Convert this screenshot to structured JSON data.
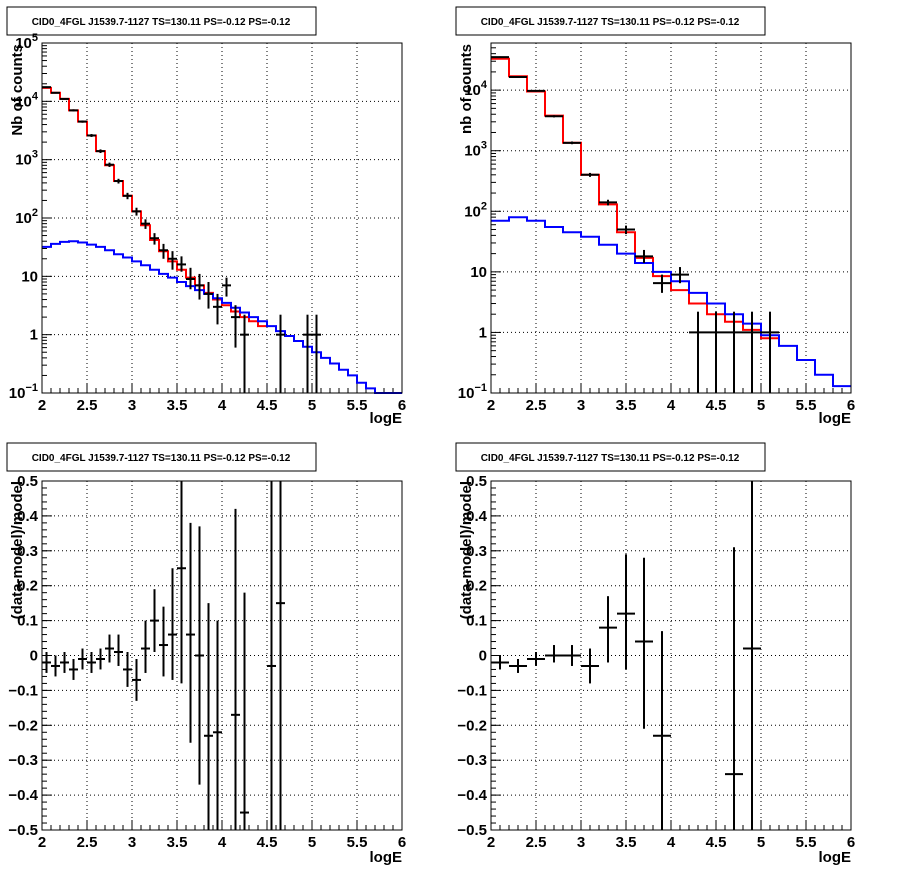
{
  "chart_data": [
    {
      "type": "histogram",
      "title": "CID0_4FGL J1539.7-1127 TS=130.11 PS=-0.12 PS=-0.12",
      "xlabel": "logE",
      "ylabel": "Nb of counts",
      "xlim": [
        2,
        6
      ],
      "ylim": [
        0.1,
        100000
      ],
      "yscale": "log",
      "grid": true,
      "x_ticks": [
        "2",
        "2.5",
        "3",
        "3.5",
        "4",
        "4.5",
        "5",
        "5.5",
        "6"
      ],
      "y_ticks": [
        {
          "v": 0.1,
          "base": "10",
          "exp": "−1"
        },
        {
          "v": 1,
          "label": "1"
        },
        {
          "v": 10,
          "label": "10"
        },
        {
          "v": 100,
          "base": "10",
          "exp": "2"
        },
        {
          "v": 1000,
          "base": "10",
          "exp": "3"
        },
        {
          "v": 10000,
          "base": "10",
          "exp": "4"
        },
        {
          "v": 100000,
          "base": "10",
          "exp": "5"
        }
      ],
      "series": [
        {
          "color": "#ff0000",
          "style": "step",
          "x_edges": [
            2,
            2.1,
            2.2,
            2.3,
            2.4,
            2.5,
            2.6,
            2.7,
            2.8,
            2.9,
            3,
            3.1,
            3.2,
            3.3,
            3.4,
            3.5,
            3.6,
            3.7,
            3.8,
            3.9,
            4,
            4.1,
            4.2,
            4.3,
            4.4,
            4.5
          ],
          "values": [
            17000,
            14000,
            11000,
            7000,
            4500,
            2600,
            1400,
            800,
            430,
            240,
            130,
            75,
            42,
            27,
            18,
            13,
            9.5,
            7,
            5.2,
            4,
            3.2,
            2.5,
            2.0,
            1.7,
            1.4
          ]
        },
        {
          "color": "#0000ff",
          "style": "step",
          "x_edges": [
            2,
            2.1,
            2.2,
            2.3,
            2.4,
            2.5,
            2.6,
            2.7,
            2.8,
            2.9,
            3,
            3.1,
            3.2,
            3.3,
            3.4,
            3.5,
            3.6,
            3.7,
            3.8,
            3.9,
            4,
            4.1,
            4.2,
            4.3,
            4.4,
            4.5,
            4.6,
            4.7,
            4.8,
            4.9,
            5,
            5.1,
            5.2,
            5.3,
            5.4,
            5.5,
            5.6,
            5.7,
            5.8,
            5.9,
            6
          ],
          "values": [
            32,
            36,
            39,
            40,
            38,
            35,
            32,
            28,
            24,
            21,
            18,
            15.5,
            13,
            11,
            9.5,
            8,
            6.8,
            5.8,
            5,
            4.2,
            3.5,
            2.9,
            2.4,
            2.0,
            1.7,
            1.4,
            1.15,
            0.95,
            0.78,
            0.62,
            0.5,
            0.4,
            0.32,
            0.25,
            0.2,
            0.15,
            0.12,
            0.1,
            0.1,
            0.1
          ]
        },
        {
          "color": "#000000",
          "style": "errorbar",
          "xerr": 0.05,
          "points": [
            {
              "x": 2.05,
              "y": 17500,
              "lo": 17000,
              "hi": 18000
            },
            {
              "x": 2.15,
              "y": 14000,
              "lo": 13600,
              "hi": 14400
            },
            {
              "x": 2.25,
              "y": 11000,
              "lo": 10600,
              "hi": 11400
            },
            {
              "x": 2.35,
              "y": 7000,
              "lo": 6700,
              "hi": 7300
            },
            {
              "x": 2.45,
              "y": 4500,
              "lo": 4300,
              "hi": 4700
            },
            {
              "x": 2.55,
              "y": 2600,
              "lo": 2450,
              "hi": 2750
            },
            {
              "x": 2.65,
              "y": 1400,
              "lo": 1300,
              "hi": 1500
            },
            {
              "x": 2.75,
              "y": 820,
              "lo": 750,
              "hi": 890
            },
            {
              "x": 2.85,
              "y": 430,
              "lo": 390,
              "hi": 470
            },
            {
              "x": 2.95,
              "y": 240,
              "lo": 210,
              "hi": 270
            },
            {
              "x": 3.05,
              "y": 130,
              "lo": 110,
              "hi": 150
            },
            {
              "x": 3.15,
              "y": 80,
              "lo": 65,
              "hi": 95
            },
            {
              "x": 3.25,
              "y": 45,
              "lo": 35,
              "hi": 55
            },
            {
              "x": 3.35,
              "y": 28,
              "lo": 20,
              "hi": 36
            },
            {
              "x": 3.45,
              "y": 20,
              "lo": 13,
              "hi": 27
            },
            {
              "x": 3.55,
              "y": 16,
              "lo": 12,
              "hi": 22
            },
            {
              "x": 3.65,
              "y": 9,
              "lo": 6,
              "hi": 14
            },
            {
              "x": 3.75,
              "y": 7,
              "lo": 4,
              "hi": 11
            },
            {
              "x": 3.85,
              "y": 5,
              "lo": 2.8,
              "hi": 8
            },
            {
              "x": 3.95,
              "y": 3,
              "lo": 1.5,
              "hi": 5
            },
            {
              "x": 4.05,
              "y": 7,
              "lo": 4.5,
              "hi": 9.5
            },
            {
              "x": 4.15,
              "y": 2,
              "lo": 0.6,
              "hi": 3.2
            },
            {
              "x": 4.25,
              "y": 1,
              "lo": 0.1,
              "hi": 2.2
            },
            {
              "x": 4.65,
              "y": 1,
              "lo": 0.1,
              "hi": 2.2
            },
            {
              "x": 4.95,
              "y": 1,
              "lo": 0.1,
              "hi": 2.2
            },
            {
              "x": 5.05,
              "y": 1,
              "lo": 0.1,
              "hi": 2.2
            }
          ]
        }
      ]
    },
    {
      "type": "histogram",
      "title": "CID0_4FGL J1539.7-1127 TS=130.11 PS=-0.12 PS=-0.12",
      "xlabel": "logE",
      "ylabel": "nb of counts",
      "xlim": [
        2,
        6
      ],
      "ylim": [
        0.1,
        60000
      ],
      "yscale": "log",
      "grid": true,
      "x_ticks": [
        "2",
        "2.5",
        "3",
        "3.5",
        "4",
        "4.5",
        "5",
        "5.5",
        "6"
      ],
      "y_ticks": [
        {
          "v": 0.1,
          "base": "10",
          "exp": "−1"
        },
        {
          "v": 1,
          "label": "1"
        },
        {
          "v": 10,
          "label": "10"
        },
        {
          "v": 100,
          "base": "10",
          "exp": "2"
        },
        {
          "v": 1000,
          "base": "10",
          "exp": "3"
        },
        {
          "v": 10000,
          "base": "10",
          "exp": "4"
        }
      ],
      "series": [
        {
          "color": "#ff0000",
          "style": "step",
          "x_edges": [
            2,
            2.2,
            2.4,
            2.6,
            2.8,
            3,
            3.2,
            3.4,
            3.6,
            3.8,
            4,
            4.2,
            4.4,
            4.6,
            4.8,
            5,
            5.2
          ],
          "values": [
            33000,
            17000,
            9500,
            3800,
            1350,
            400,
            130,
            45,
            17,
            8.5,
            5,
            3,
            2,
            1.5,
            1.1,
            0.8
          ]
        },
        {
          "color": "#0000ff",
          "style": "step",
          "x_edges": [
            2,
            2.2,
            2.4,
            2.6,
            2.8,
            3,
            3.2,
            3.4,
            3.6,
            3.8,
            4,
            4.2,
            4.4,
            4.6,
            4.8,
            5,
            5.2,
            5.4,
            5.6,
            5.8,
            6
          ],
          "values": [
            70,
            80,
            70,
            55,
            45,
            38,
            28,
            20,
            14,
            10,
            7,
            4.5,
            3,
            2,
            1.4,
            0.9,
            0.6,
            0.35,
            0.2,
            0.13
          ]
        },
        {
          "color": "#000000",
          "style": "errorbar",
          "xerr": 0.1,
          "points": [
            {
              "x": 2.1,
              "y": 35000,
              "lo": 34000,
              "hi": 36000
            },
            {
              "x": 2.3,
              "y": 16500,
              "lo": 16000,
              "hi": 17000
            },
            {
              "x": 2.5,
              "y": 9700,
              "lo": 9400,
              "hi": 10000
            },
            {
              "x": 2.7,
              "y": 3700,
              "lo": 3550,
              "hi": 3850
            },
            {
              "x": 2.9,
              "y": 1350,
              "lo": 1280,
              "hi": 1420
            },
            {
              "x": 3.1,
              "y": 400,
              "lo": 370,
              "hi": 430
            },
            {
              "x": 3.3,
              "y": 140,
              "lo": 125,
              "hi": 155
            },
            {
              "x": 3.5,
              "y": 50,
              "lo": 42,
              "hi": 58
            },
            {
              "x": 3.7,
              "y": 18,
              "lo": 14,
              "hi": 23
            },
            {
              "x": 3.9,
              "y": 6.5,
              "lo": 4.5,
              "hi": 9
            },
            {
              "x": 4.1,
              "y": 9,
              "lo": 6.5,
              "hi": 12
            },
            {
              "x": 4.3,
              "y": 1,
              "lo": 0.1,
              "hi": 2.2
            },
            {
              "x": 4.5,
              "y": 1,
              "lo": 0.1,
              "hi": 2.2
            },
            {
              "x": 4.7,
              "y": 1,
              "lo": 0.1,
              "hi": 2.2
            },
            {
              "x": 4.9,
              "y": 1,
              "lo": 0.1,
              "hi": 2.2
            },
            {
              "x": 5.1,
              "y": 1,
              "lo": 0.1,
              "hi": 2.2
            }
          ]
        }
      ]
    },
    {
      "type": "scatter",
      "title": "CID0_4FGL J1539.7-1127 TS=130.11 PS=-0.12 PS=-0.12",
      "xlabel": "logE",
      "ylabel": "(data-model)/model",
      "xlim": [
        2,
        6
      ],
      "ylim": [
        -0.5,
        0.5
      ],
      "yscale": "linear",
      "grid": true,
      "x_ticks": [
        "2",
        "2.5",
        "3",
        "3.5",
        "4",
        "4.5",
        "5",
        "5.5",
        "6"
      ],
      "y_ticks": [
        "−0.5",
        "−0.4",
        "−0.3",
        "−0.2",
        "−0.1",
        "0",
        "0.1",
        "0.2",
        "0.3",
        "0.4",
        "0.5"
      ],
      "series": [
        {
          "color": "#000000",
          "style": "errorbar",
          "xerr": 0.05,
          "points": [
            {
              "x": 2.05,
              "y": -0.02,
              "lo": -0.05,
              "hi": 0.01
            },
            {
              "x": 2.15,
              "y": -0.03,
              "lo": -0.06,
              "hi": 0.0
            },
            {
              "x": 2.25,
              "y": -0.02,
              "lo": -0.05,
              "hi": 0.01
            },
            {
              "x": 2.35,
              "y": -0.04,
              "lo": -0.07,
              "hi": -0.01
            },
            {
              "x": 2.45,
              "y": -0.01,
              "lo": -0.04,
              "hi": 0.02
            },
            {
              "x": 2.55,
              "y": -0.02,
              "lo": -0.05,
              "hi": 0.01
            },
            {
              "x": 2.65,
              "y": -0.01,
              "lo": -0.04,
              "hi": 0.02
            },
            {
              "x": 2.75,
              "y": 0.02,
              "lo": -0.02,
              "hi": 0.06
            },
            {
              "x": 2.85,
              "y": 0.01,
              "lo": -0.03,
              "hi": 0.06
            },
            {
              "x": 2.95,
              "y": -0.04,
              "lo": -0.09,
              "hi": 0.01
            },
            {
              "x": 3.05,
              "y": -0.07,
              "lo": -0.13,
              "hi": -0.01
            },
            {
              "x": 3.15,
              "y": 0.02,
              "lo": -0.05,
              "hi": 0.1
            },
            {
              "x": 3.25,
              "y": 0.1,
              "lo": 0.01,
              "hi": 0.19
            },
            {
              "x": 3.35,
              "y": 0.03,
              "lo": -0.06,
              "hi": 0.14
            },
            {
              "x": 3.45,
              "y": 0.06,
              "lo": -0.07,
              "hi": 0.25
            },
            {
              "x": 3.55,
              "y": 0.25,
              "lo": -0.08,
              "hi": 0.5
            },
            {
              "x": 3.65,
              "y": 0.06,
              "lo": -0.25,
              "hi": 0.38
            },
            {
              "x": 3.75,
              "y": 0.0,
              "lo": -0.37,
              "hi": 0.37
            },
            {
              "x": 3.85,
              "y": -0.23,
              "lo": -0.5,
              "hi": 0.15
            },
            {
              "x": 3.95,
              "y": -0.22,
              "lo": -0.5,
              "hi": 0.1
            },
            {
              "x": 4.15,
              "y": -0.17,
              "lo": -0.5,
              "hi": 0.42
            },
            {
              "x": 4.25,
              "y": -0.45,
              "lo": -0.5,
              "hi": 0.18
            },
            {
              "x": 4.55,
              "y": -0.03,
              "lo": -0.5,
              "hi": 0.5
            },
            {
              "x": 4.65,
              "y": 0.15,
              "lo": -0.5,
              "hi": 0.5
            }
          ]
        }
      ]
    },
    {
      "type": "scatter",
      "title": "CID0_4FGL J1539.7-1127 TS=130.11 PS=-0.12 PS=-0.12",
      "xlabel": "logE",
      "ylabel": "(data-model)/model",
      "xlim": [
        2,
        6
      ],
      "ylim": [
        -0.5,
        0.5
      ],
      "yscale": "linear",
      "grid": true,
      "x_ticks": [
        "2",
        "2.5",
        "3",
        "3.5",
        "4",
        "4.5",
        "5",
        "5.5",
        "6"
      ],
      "y_ticks": [
        "−0.5",
        "−0.4",
        "−0.3",
        "−0.2",
        "−0.1",
        "0",
        "0.1",
        "0.2",
        "0.3",
        "0.4",
        "0.5"
      ],
      "series": [
        {
          "color": "#000000",
          "style": "errorbar",
          "xerr": 0.1,
          "points": [
            {
              "x": 2.1,
              "y": -0.02,
              "lo": -0.04,
              "hi": 0.0
            },
            {
              "x": 2.3,
              "y": -0.03,
              "lo": -0.05,
              "hi": -0.01
            },
            {
              "x": 2.5,
              "y": -0.01,
              "lo": -0.03,
              "hi": 0.01
            },
            {
              "x": 2.7,
              "y": 0.0,
              "lo": -0.02,
              "hi": 0.03
            },
            {
              "x": 2.9,
              "y": 0.0,
              "lo": -0.03,
              "hi": 0.03
            },
            {
              "x": 3.1,
              "y": -0.03,
              "lo": -0.08,
              "hi": 0.02
            },
            {
              "x": 3.3,
              "y": 0.08,
              "lo": -0.02,
              "hi": 0.17
            },
            {
              "x": 3.5,
              "y": 0.12,
              "lo": -0.04,
              "hi": 0.29
            },
            {
              "x": 3.7,
              "y": 0.04,
              "lo": -0.21,
              "hi": 0.28
            },
            {
              "x": 3.9,
              "y": -0.23,
              "lo": -0.5,
              "hi": 0.07
            },
            {
              "x": 4.7,
              "y": -0.34,
              "lo": -0.5,
              "hi": 0.31
            },
            {
              "x": 4.9,
              "y": 0.02,
              "lo": -0.5,
              "hi": 0.5
            }
          ]
        }
      ]
    }
  ]
}
